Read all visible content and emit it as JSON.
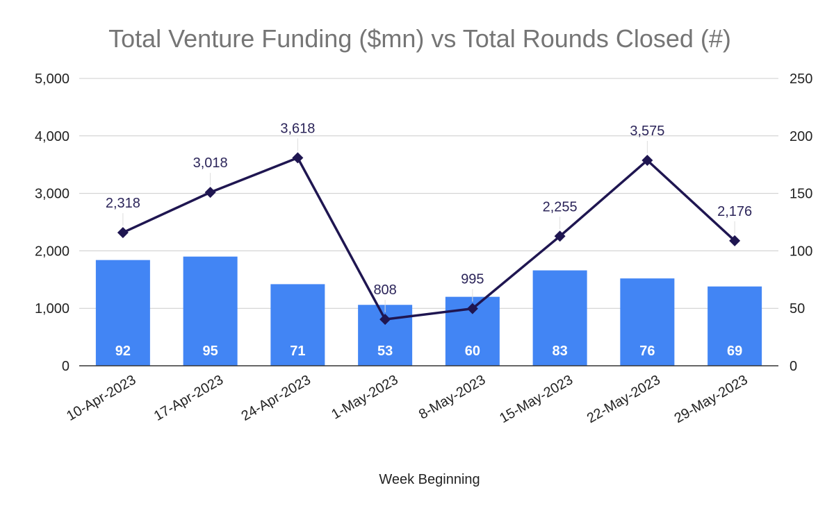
{
  "chart_data": {
    "type": "bar+line",
    "title": "Total Venture Funding ($mn) vs Total Rounds Closed (#)",
    "xlabel": "Week Beginning",
    "categories": [
      "10-Apr-2023",
      "17-Apr-2023",
      "24-Apr-2023",
      "1-May-2023",
      "8-May-2023",
      "15-May-2023",
      "22-May-2023",
      "29-May-2023"
    ],
    "series": [
      {
        "name": "Total Rounds Closed (#)",
        "type": "bar",
        "axis": "right",
        "color": "#4285f4",
        "values": [
          92,
          95,
          71,
          53,
          60,
          83,
          76,
          69
        ],
        "labels": [
          "92",
          "95",
          "71",
          "53",
          "60",
          "83",
          "76",
          "69"
        ]
      },
      {
        "name": "Total Venture Funding ($mn)",
        "type": "line",
        "axis": "left",
        "color": "#1f1651",
        "marker": "diamond",
        "values": [
          2318,
          3018,
          3618,
          808,
          995,
          2255,
          3575,
          2176
        ],
        "labels": [
          "2,318",
          "3,018",
          "3,618",
          "808",
          "995",
          "2,255",
          "3,575",
          "2,176"
        ]
      }
    ],
    "y_left": {
      "min": 0,
      "max": 5000,
      "ticks": [
        "0",
        "1,000",
        "2,000",
        "3,000",
        "4,000",
        "5,000"
      ]
    },
    "y_right": {
      "min": 0,
      "max": 250,
      "ticks": [
        "0",
        "50",
        "100",
        "150",
        "200",
        "250"
      ]
    },
    "grid": true,
    "legend": "none"
  }
}
